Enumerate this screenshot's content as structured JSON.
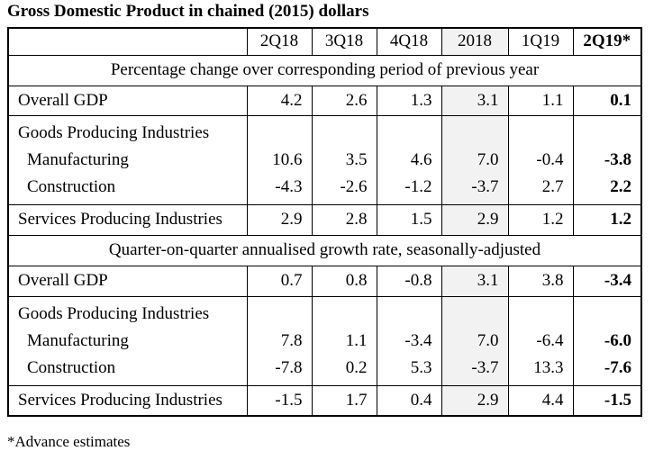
{
  "title": "Gross Domestic Product in chained (2015) dollars",
  "columns": [
    "2Q18",
    "3Q18",
    "4Q18",
    "2018",
    "1Q19",
    "2Q19*"
  ],
  "sections": [
    {
      "heading": "Percentage change over corresponding period of previous year",
      "rows": [
        {
          "label": "Overall GDP",
          "values": [
            "4.2",
            "2.6",
            "1.3",
            "3.1",
            "1.1",
            "0.1"
          ]
        },
        {
          "label": "Goods Producing Industries",
          "values": [
            "",
            "",
            "",
            "",
            "",
            ""
          ]
        },
        {
          "label": "Manufacturing",
          "values": [
            "10.6",
            "3.5",
            "4.6",
            "7.0",
            "-0.4",
            "-3.8"
          ]
        },
        {
          "label": "Construction",
          "values": [
            "-4.3",
            "-2.6",
            "-1.2",
            "-3.7",
            "2.7",
            "2.2"
          ]
        },
        {
          "label": "Services Producing Industries",
          "values": [
            "2.9",
            "2.8",
            "1.5",
            "2.9",
            "1.2",
            "1.2"
          ]
        }
      ]
    },
    {
      "heading": "Quarter-on-quarter annualised growth rate, seasonally-adjusted",
      "rows": [
        {
          "label": "Overall GDP",
          "values": [
            "0.7",
            "0.8",
            "-0.8",
            "3.1",
            "3.8",
            "-3.4"
          ]
        },
        {
          "label": "Goods Producing Industries",
          "values": [
            "",
            "",
            "",
            "",
            "",
            ""
          ]
        },
        {
          "label": "Manufacturing",
          "values": [
            "7.8",
            "1.1",
            "-3.4",
            "7.0",
            "-6.4",
            "-6.0"
          ]
        },
        {
          "label": "Construction",
          "values": [
            "-7.8",
            "0.2",
            "5.3",
            "-3.7",
            "13.3",
            "-7.6"
          ]
        },
        {
          "label": "Services Producing Industries",
          "values": [
            "-1.5",
            "1.7",
            "0.4",
            "2.9",
            "4.4",
            "-1.5"
          ]
        }
      ]
    }
  ],
  "footnote": "*Advance estimates",
  "colors": {
    "annual_column_shade": "#f2f2f2",
    "border": "#000000"
  }
}
